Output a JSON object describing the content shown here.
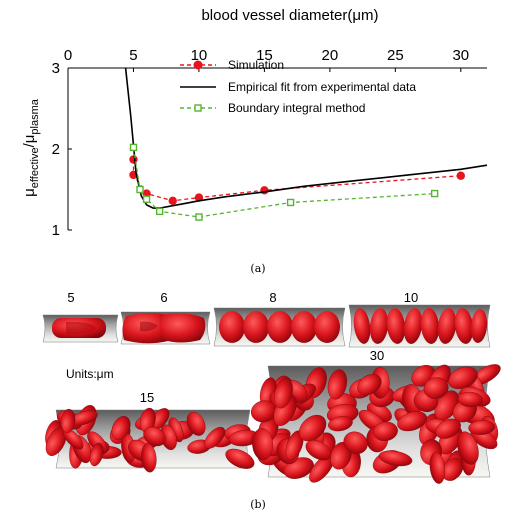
{
  "chart_data": {
    "type": "line",
    "xlabel": "blood vessel diameter(μm)",
    "ylabel_main": "μ",
    "ylabel_sub1": "effective",
    "ylabel_sep": "/μ",
    "ylabel_sub2": "plasma",
    "xlim": [
      0,
      32
    ],
    "ylim": [
      1,
      3
    ],
    "x_ticks": [
      0,
      5,
      10,
      15,
      20,
      25,
      30
    ],
    "y_ticks": [
      1,
      2,
      3
    ],
    "x_axis_position": "top",
    "grid": false,
    "legend_position": "top-right",
    "series": [
      {
        "name": "Simulation",
        "color": "#e8141d",
        "style": "dashed",
        "marker": "filled-circle",
        "x": [
          5,
          5,
          6,
          8,
          10,
          15,
          30
        ],
        "y": [
          1.87,
          1.68,
          1.45,
          1.36,
          1.4,
          1.49,
          1.67
        ]
      },
      {
        "name": "Empirical fit from experimental data",
        "color": "#000000",
        "style": "solid",
        "marker": "none",
        "x": [
          4.4,
          4.8,
          5.2,
          5.6,
          6.0,
          6.5,
          7.0,
          8.0,
          9.0,
          10.0,
          12.0,
          15.0,
          18.0,
          22.0,
          26.0,
          30.0,
          32.0
        ],
        "y": [
          3.0,
          2.4,
          1.7,
          1.42,
          1.31,
          1.27,
          1.27,
          1.3,
          1.33,
          1.36,
          1.41,
          1.47,
          1.54,
          1.61,
          1.68,
          1.75,
          1.8
        ]
      },
      {
        "name": "Boundary integral method",
        "color": "#55b530",
        "style": "dashed",
        "marker": "open-square",
        "x": [
          5,
          5.5,
          6,
          7,
          10,
          17,
          28
        ],
        "y": [
          2.02,
          1.5,
          1.38,
          1.23,
          1.16,
          1.34,
          1.45
        ]
      }
    ]
  },
  "captions": {
    "a": "(a)",
    "b": "(b)"
  },
  "figure_b": {
    "units_label": "Units:μm",
    "tubes": [
      {
        "label": "5"
      },
      {
        "label": "6"
      },
      {
        "label": "8"
      },
      {
        "label": "10"
      },
      {
        "label": "15"
      },
      {
        "label": "30"
      }
    ],
    "cell_color": "#d8141c",
    "tube_color": "#8f8f8f"
  }
}
